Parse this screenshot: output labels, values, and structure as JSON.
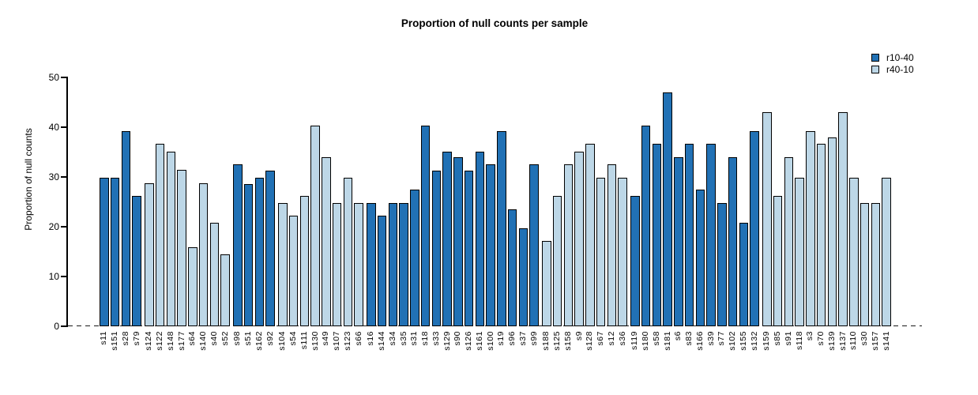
{
  "title": "Proportion of null counts per sample",
  "y_axis": {
    "label": "Proportion of null counts"
  },
  "legend": {
    "items": [
      {
        "label": "r10-40",
        "color": "#2171b5"
      },
      {
        "label": "r40-10",
        "color": "#bdd7e7"
      }
    ]
  },
  "chart_data": {
    "type": "bar",
    "title": "Proportion of null counts per sample",
    "xlabel": "",
    "ylabel": "Proportion of null counts",
    "ylim": [
      0,
      50
    ],
    "yticks": [
      0,
      10,
      20,
      30,
      40,
      50
    ],
    "grid": false,
    "legend_position": "top-right",
    "zero_line_style": "dashed",
    "series_colors": {
      "r10-40": "#2171b5",
      "r40-10": "#bdd7e7"
    },
    "samples": [
      {
        "name": "s11",
        "group": "r10-40",
        "value": 29.9
      },
      {
        "name": "s151",
        "group": "r10-40",
        "value": 29.9
      },
      {
        "name": "s28",
        "group": "r10-40",
        "value": 39.2
      },
      {
        "name": "s79",
        "group": "r10-40",
        "value": 26.2
      },
      {
        "name": "s124",
        "group": "r40-10",
        "value": 28.8
      },
      {
        "name": "s122",
        "group": "r40-10",
        "value": 36.6
      },
      {
        "name": "s148",
        "group": "r40-10",
        "value": 35.1
      },
      {
        "name": "s177",
        "group": "r40-10",
        "value": 31.4
      },
      {
        "name": "s64",
        "group": "r40-10",
        "value": 15.8
      },
      {
        "name": "s140",
        "group": "r40-10",
        "value": 28.8
      },
      {
        "name": "s40",
        "group": "r40-10",
        "value": 20.8
      },
      {
        "name": "s52",
        "group": "r40-10",
        "value": 14.4
      },
      {
        "name": "s98",
        "group": "r10-40",
        "value": 32.6
      },
      {
        "name": "s51",
        "group": "r10-40",
        "value": 28.6
      },
      {
        "name": "s162",
        "group": "r10-40",
        "value": 29.9
      },
      {
        "name": "s92",
        "group": "r10-40",
        "value": 31.3
      },
      {
        "name": "s104",
        "group": "r40-10",
        "value": 24.8
      },
      {
        "name": "s54",
        "group": "r40-10",
        "value": 22.2
      },
      {
        "name": "s111",
        "group": "r40-10",
        "value": 26.2
      },
      {
        "name": "s130",
        "group": "r40-10",
        "value": 40.3
      },
      {
        "name": "s49",
        "group": "r40-10",
        "value": 33.9
      },
      {
        "name": "s107",
        "group": "r40-10",
        "value": 24.8
      },
      {
        "name": "s123",
        "group": "r40-10",
        "value": 29.9
      },
      {
        "name": "s66",
        "group": "r40-10",
        "value": 24.8
      },
      {
        "name": "s16",
        "group": "r10-40",
        "value": 24.8
      },
      {
        "name": "s144",
        "group": "r10-40",
        "value": 22.2
      },
      {
        "name": "s34",
        "group": "r10-40",
        "value": 24.8
      },
      {
        "name": "s35",
        "group": "r10-40",
        "value": 24.8
      },
      {
        "name": "s31",
        "group": "r10-40",
        "value": 27.4
      },
      {
        "name": "s18",
        "group": "r10-40",
        "value": 40.3
      },
      {
        "name": "s33",
        "group": "r10-40",
        "value": 31.3
      },
      {
        "name": "s129",
        "group": "r10-40",
        "value": 35.1
      },
      {
        "name": "s90",
        "group": "r10-40",
        "value": 33.9
      },
      {
        "name": "s126",
        "group": "r10-40",
        "value": 31.3
      },
      {
        "name": "s161",
        "group": "r10-40",
        "value": 35.1
      },
      {
        "name": "s100",
        "group": "r10-40",
        "value": 32.6
      },
      {
        "name": "s19",
        "group": "r10-40",
        "value": 39.2
      },
      {
        "name": "s96",
        "group": "r10-40",
        "value": 23.5
      },
      {
        "name": "s37",
        "group": "r10-40",
        "value": 19.7
      },
      {
        "name": "s99",
        "group": "r10-40",
        "value": 32.6
      },
      {
        "name": "s188",
        "group": "r40-10",
        "value": 17.1
      },
      {
        "name": "s125",
        "group": "r40-10",
        "value": 26.2
      },
      {
        "name": "s158",
        "group": "r40-10",
        "value": 32.6
      },
      {
        "name": "s9",
        "group": "r40-10",
        "value": 35.1
      },
      {
        "name": "s128",
        "group": "r40-10",
        "value": 36.6
      },
      {
        "name": "s67",
        "group": "r40-10",
        "value": 29.9
      },
      {
        "name": "s12",
        "group": "r40-10",
        "value": 32.6
      },
      {
        "name": "s36",
        "group": "r40-10",
        "value": 29.9
      },
      {
        "name": "s119",
        "group": "r10-40",
        "value": 26.2
      },
      {
        "name": "s180",
        "group": "r10-40",
        "value": 40.3
      },
      {
        "name": "s58",
        "group": "r10-40",
        "value": 36.6
      },
      {
        "name": "s181",
        "group": "r10-40",
        "value": 47.0
      },
      {
        "name": "s6",
        "group": "r10-40",
        "value": 33.9
      },
      {
        "name": "s83",
        "group": "r10-40",
        "value": 36.6
      },
      {
        "name": "s166",
        "group": "r10-40",
        "value": 27.4
      },
      {
        "name": "s39",
        "group": "r10-40",
        "value": 36.6
      },
      {
        "name": "s77",
        "group": "r10-40",
        "value": 24.8
      },
      {
        "name": "s102",
        "group": "r10-40",
        "value": 33.9
      },
      {
        "name": "s155",
        "group": "r10-40",
        "value": 20.8
      },
      {
        "name": "s132",
        "group": "r10-40",
        "value": 39.2
      },
      {
        "name": "s159",
        "group": "r40-10",
        "value": 43.0
      },
      {
        "name": "s85",
        "group": "r40-10",
        "value": 26.2
      },
      {
        "name": "s91",
        "group": "r40-10",
        "value": 33.9
      },
      {
        "name": "s118",
        "group": "r40-10",
        "value": 29.9
      },
      {
        "name": "s3",
        "group": "r40-10",
        "value": 39.2
      },
      {
        "name": "s70",
        "group": "r40-10",
        "value": 36.6
      },
      {
        "name": "s139",
        "group": "r40-10",
        "value": 37.9
      },
      {
        "name": "s137",
        "group": "r40-10",
        "value": 43.0
      },
      {
        "name": "s110",
        "group": "r40-10",
        "value": 29.9
      },
      {
        "name": "s30",
        "group": "r40-10",
        "value": 24.8
      },
      {
        "name": "s157",
        "group": "r40-10",
        "value": 24.8
      },
      {
        "name": "s141",
        "group": "r40-10",
        "value": 29.9
      }
    ]
  }
}
